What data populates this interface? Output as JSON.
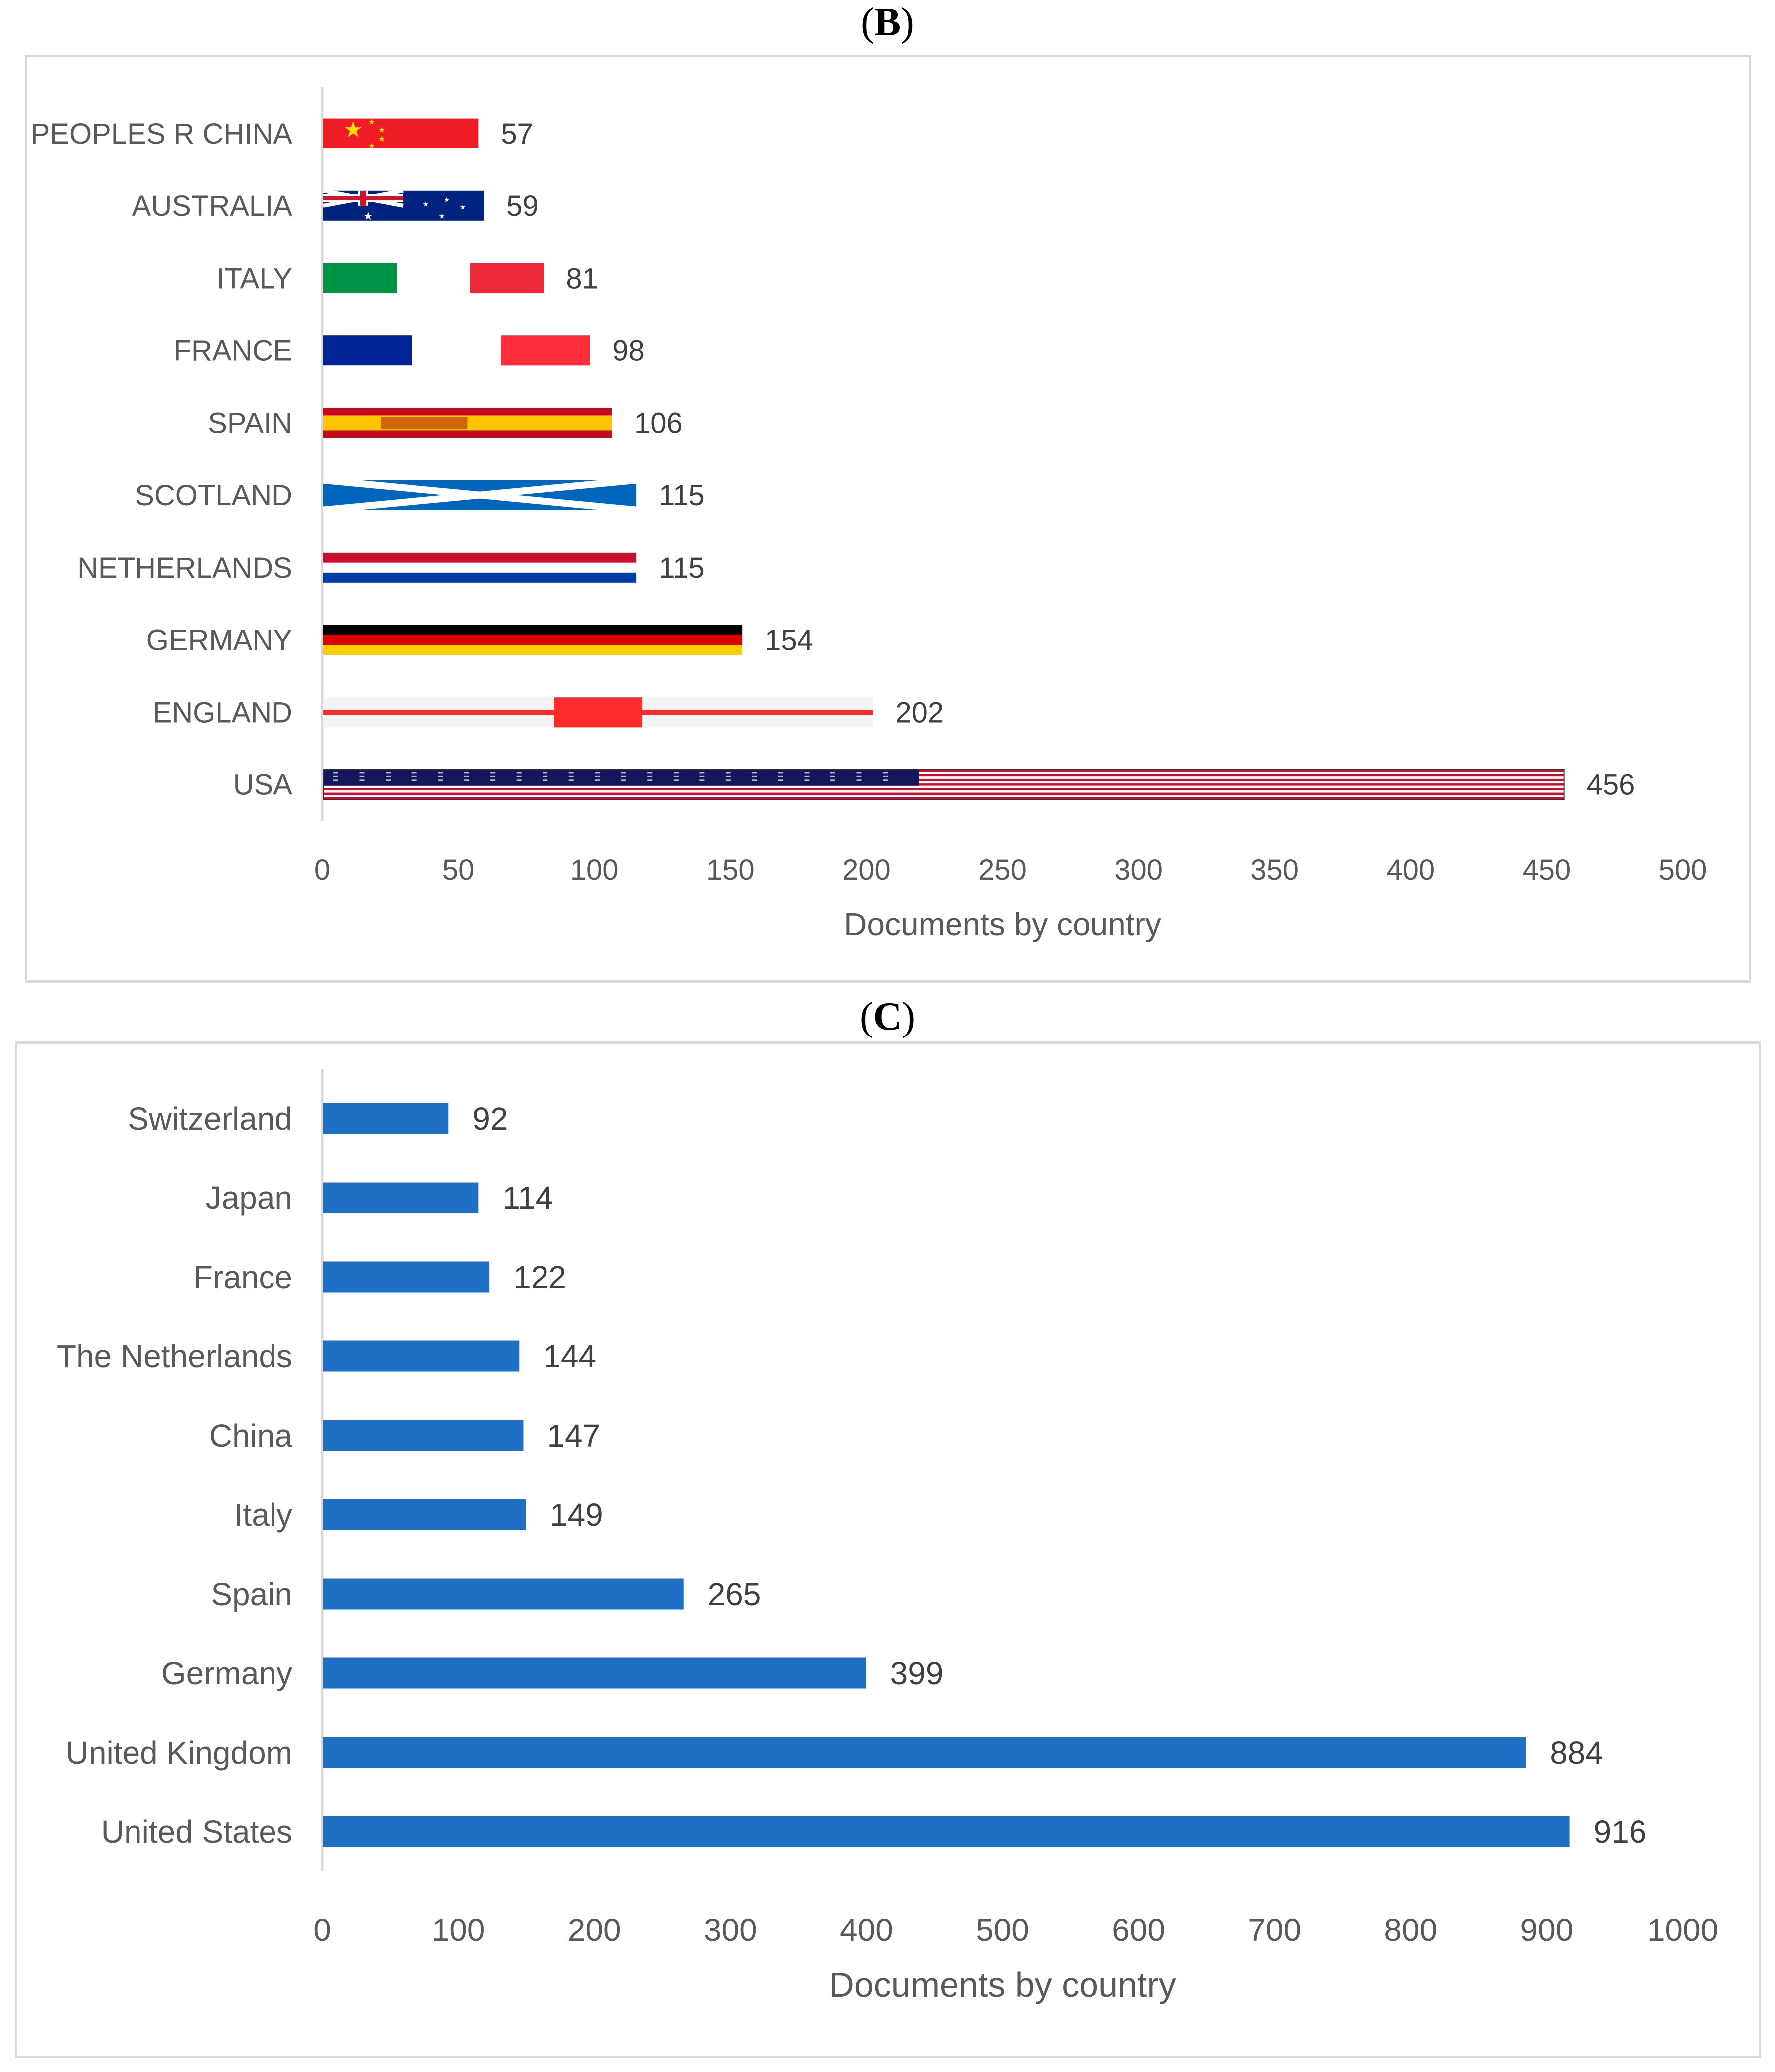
{
  "panel_b_label": {
    "open": "(",
    "letter": "B",
    "close": ")"
  },
  "panel_c_label": {
    "open": "(",
    "letter": "C",
    "close": ")"
  },
  "chart_data": [
    {
      "id": "B",
      "type": "bar",
      "orientation": "horizontal",
      "categories": [
        "PEOPLES R CHINA",
        "AUSTRALIA",
        "ITALY",
        "FRANCE",
        "SPAIN",
        "SCOTLAND",
        "NETHERLANDS",
        "GERMANY",
        "ENGLAND",
        "USA"
      ],
      "values": [
        57,
        59,
        81,
        98,
        106,
        115,
        115,
        154,
        202,
        456
      ],
      "bar_style": "country-flags",
      "xlabel": "Documents by country",
      "ylabel": "",
      "xlim": [
        0,
        500
      ],
      "xticks": [
        0,
        50,
        100,
        150,
        200,
        250,
        300,
        350,
        400,
        450,
        500
      ],
      "data_labels": true,
      "grid": false
    },
    {
      "id": "C",
      "type": "bar",
      "orientation": "horizontal",
      "categories": [
        "Switzerland",
        "Japan",
        "France",
        "The Netherlands",
        "China",
        "Italy",
        "Spain",
        "Germany",
        "United Kingdom",
        "United States"
      ],
      "values": [
        92,
        114,
        122,
        144,
        147,
        149,
        265,
        399,
        884,
        916
      ],
      "bar_color": "#1f6fc5",
      "xlabel": "Documents by country",
      "ylabel": "",
      "xlim": [
        0,
        1000
      ],
      "xticks": [
        0,
        100,
        200,
        300,
        400,
        500,
        600,
        700,
        800,
        900,
        1000
      ],
      "data_labels": true,
      "grid": false
    }
  ]
}
